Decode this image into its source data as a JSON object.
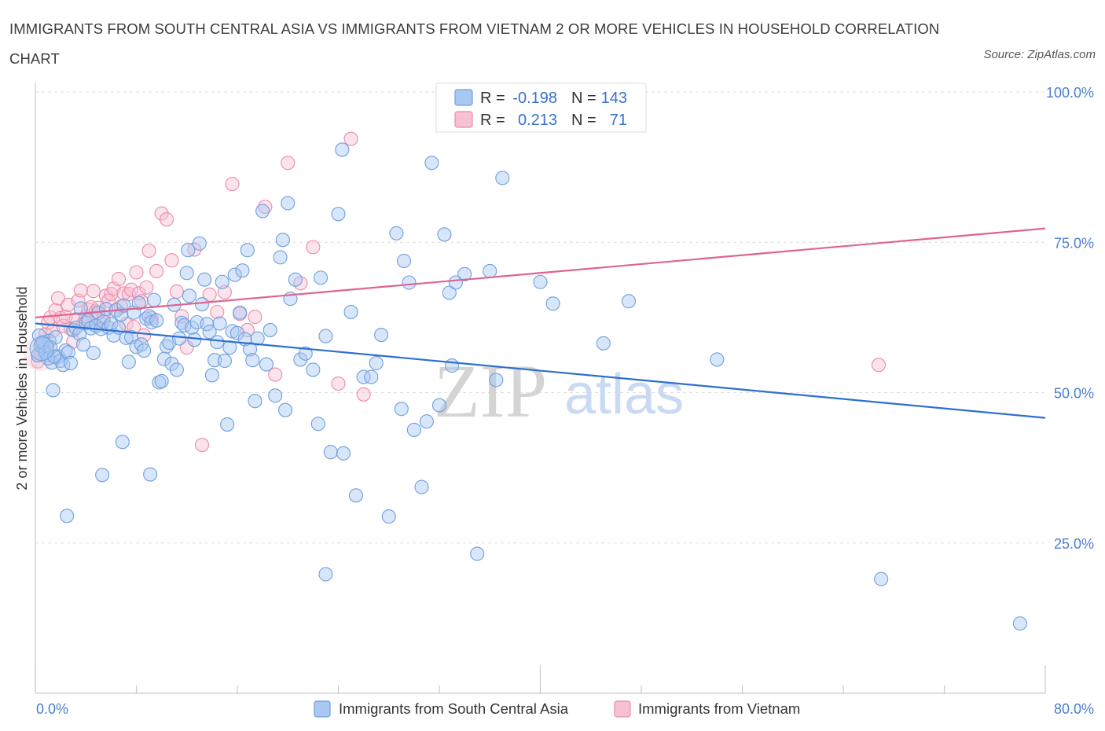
{
  "title": "IMMIGRANTS FROM SOUTH CENTRAL ASIA VS IMMIGRANTS FROM VIETNAM 2 OR MORE VEHICLES IN HOUSEHOLD CORRELATION CHART",
  "source": "Source: ZipAtlas.com",
  "watermark": {
    "zip": "ZIP",
    "atlas": "atlas"
  },
  "colors": {
    "blue_fill": "#a9c8f2",
    "blue_stroke": "#6f9fdf",
    "blue_line": "#2e6fce",
    "pink_fill": "#f6c2d3",
    "pink_stroke": "#e98cab",
    "pink_line": "#e06394",
    "tick_text": "#4a7fd0",
    "grid": "#dddddd"
  },
  "legend": {
    "rows": [
      {
        "r_label": "R =",
        "r_value": "-0.198",
        "n_label": "N =",
        "n_value": "143"
      },
      {
        "r_label": "R =",
        "r_value": "0.213",
        "n_label": "N =",
        "n_value": "71"
      }
    ]
  },
  "chart_data": {
    "type": "scatter",
    "title": "IMMIGRANTS FROM SOUTH CENTRAL ASIA VS IMMIGRANTS FROM VIETNAM 2 OR MORE VEHICLES IN HOUSEHOLD CORRELATION CHART",
    "xlabel": "",
    "ylabel": "2 or more Vehicles in Household",
    "xlim": [
      0,
      80
    ],
    "ylim": [
      0,
      100
    ],
    "x_tick_labels": [
      "0.0%",
      "80.0%"
    ],
    "y_ticks": [
      25,
      50,
      75,
      100
    ],
    "y_tick_labels": [
      "25.0%",
      "50.0%",
      "75.0%",
      "100.0%"
    ],
    "grid": true,
    "legend_position": "top-center",
    "series": [
      {
        "name": "Immigrants from South Central Asia",
        "color": "#a9c8f2",
        "R": -0.198,
        "N": 143,
        "trend": {
          "x": [
            0,
            80
          ],
          "y": [
            61.5,
            45.8
          ]
        },
        "points": [
          [
            0.3,
            59.5
          ],
          [
            0.5,
            58.1
          ],
          [
            0.7,
            57.2
          ],
          [
            0.9,
            56.3
          ],
          [
            1.1,
            58.6
          ],
          [
            1.3,
            55.0
          ],
          [
            1.4,
            50.4
          ],
          [
            1.6,
            59.2
          ],
          [
            1.8,
            56.0
          ],
          [
            2.0,
            55.3
          ],
          [
            2.2,
            54.6
          ],
          [
            2.4,
            57.0
          ],
          [
            2.6,
            56.7
          ],
          [
            2.8,
            54.9
          ],
          [
            3.0,
            60.4
          ],
          [
            3.2,
            60.8
          ],
          [
            3.5,
            59.8
          ],
          [
            3.6,
            64.0
          ],
          [
            3.8,
            58.0
          ],
          [
            4.0,
            61.6
          ],
          [
            4.2,
            62.0
          ],
          [
            4.4,
            60.7
          ],
          [
            4.6,
            56.6
          ],
          [
            4.8,
            61.1
          ],
          [
            5.0,
            63.3
          ],
          [
            5.2,
            60.6
          ],
          [
            5.4,
            61.8
          ],
          [
            5.6,
            63.9
          ],
          [
            5.8,
            60.8
          ],
          [
            6.0,
            61.4
          ],
          [
            6.2,
            59.5
          ],
          [
            6.4,
            63.7
          ],
          [
            6.6,
            60.8
          ],
          [
            6.8,
            63.0
          ],
          [
            7.0,
            64.5
          ],
          [
            7.2,
            59.1
          ],
          [
            7.4,
            55.1
          ],
          [
            7.6,
            59.2
          ],
          [
            7.8,
            63.3
          ],
          [
            8.0,
            57.6
          ],
          [
            8.2,
            64.9
          ],
          [
            8.4,
            58.0
          ],
          [
            8.6,
            57.0
          ],
          [
            8.8,
            62.3
          ],
          [
            9.0,
            62.7
          ],
          [
            9.2,
            61.7
          ],
          [
            9.4,
            65.4
          ],
          [
            9.6,
            62.0
          ],
          [
            9.8,
            51.7
          ],
          [
            10.0,
            51.9
          ],
          [
            10.2,
            55.6
          ],
          [
            10.4,
            57.7
          ],
          [
            10.6,
            58.3
          ],
          [
            10.8,
            54.8
          ],
          [
            11.0,
            64.6
          ],
          [
            11.2,
            53.8
          ],
          [
            11.4,
            59.0
          ],
          [
            11.6,
            61.6
          ],
          [
            11.8,
            61.2
          ],
          [
            12.0,
            69.9
          ],
          [
            12.2,
            66.1
          ],
          [
            12.4,
            60.8
          ],
          [
            12.6,
            58.8
          ],
          [
            12.8,
            61.7
          ],
          [
            13.0,
            74.8
          ],
          [
            13.2,
            64.7
          ],
          [
            13.4,
            68.8
          ],
          [
            13.6,
            61.4
          ],
          [
            13.8,
            60.1
          ],
          [
            14.0,
            52.9
          ],
          [
            14.2,
            55.4
          ],
          [
            14.4,
            58.4
          ],
          [
            14.6,
            61.5
          ],
          [
            14.8,
            68.4
          ],
          [
            15.0,
            55.3
          ],
          [
            15.2,
            44.7
          ],
          [
            15.4,
            57.5
          ],
          [
            15.6,
            60.2
          ],
          [
            15.8,
            69.6
          ],
          [
            16.0,
            59.9
          ],
          [
            16.2,
            63.3
          ],
          [
            16.4,
            70.3
          ],
          [
            16.6,
            58.9
          ],
          [
            16.8,
            73.7
          ],
          [
            17.0,
            57.2
          ],
          [
            17.2,
            55.4
          ],
          [
            17.4,
            48.6
          ],
          [
            17.6,
            59.0
          ],
          [
            18.0,
            80.2
          ],
          [
            18.3,
            54.7
          ],
          [
            18.6,
            60.4
          ],
          [
            19.0,
            49.5
          ],
          [
            19.4,
            72.5
          ],
          [
            19.8,
            47.1
          ],
          [
            20.2,
            65.6
          ],
          [
            20.6,
            68.8
          ],
          [
            21.0,
            55.5
          ],
          [
            21.4,
            56.5
          ],
          [
            22.0,
            53.8
          ],
          [
            22.4,
            44.8
          ],
          [
            22.6,
            69.1
          ],
          [
            23.0,
            59.4
          ],
          [
            23.4,
            40.1
          ],
          [
            24.0,
            79.7
          ],
          [
            24.4,
            39.9
          ],
          [
            25.0,
            63.4
          ],
          [
            25.4,
            32.9
          ],
          [
            26.0,
            52.6
          ],
          [
            26.6,
            52.6
          ],
          [
            27.0,
            54.9
          ],
          [
            27.4,
            59.6
          ],
          [
            28.0,
            29.4
          ],
          [
            28.6,
            76.5
          ],
          [
            29.2,
            71.9
          ],
          [
            29.6,
            68.3
          ],
          [
            30.0,
            43.8
          ],
          [
            30.6,
            34.3
          ],
          [
            31.0,
            45.2
          ],
          [
            31.4,
            88.2
          ],
          [
            32.0,
            47.9
          ],
          [
            32.4,
            76.3
          ],
          [
            32.8,
            66.6
          ],
          [
            33.0,
            54.5
          ],
          [
            34.0,
            69.7
          ],
          [
            35.0,
            23.2
          ],
          [
            36.0,
            70.2
          ],
          [
            37.0,
            85.7
          ],
          [
            40.0,
            68.4
          ],
          [
            41.0,
            64.8
          ],
          [
            45.0,
            58.2
          ],
          [
            47.0,
            65.2
          ],
          [
            54.0,
            55.5
          ],
          [
            67.0,
            19.0
          ],
          [
            78.0,
            11.6
          ],
          [
            0.2,
            56.2
          ],
          [
            0.4,
            57.8
          ],
          [
            0.6,
            58.4
          ],
          [
            0.8,
            56.7
          ],
          [
            1.0,
            55.7
          ],
          [
            1.2,
            57.5
          ],
          [
            1.5,
            56.0
          ],
          [
            2.5,
            29.5
          ],
          [
            5.3,
            36.3
          ],
          [
            6.9,
            41.8
          ],
          [
            9.1,
            36.4
          ],
          [
            12.1,
            73.7
          ],
          [
            20.0,
            81.5
          ],
          [
            23.0,
            19.8
          ],
          [
            24.3,
            90.4
          ],
          [
            29.0,
            47.3
          ],
          [
            33.3,
            68.3
          ],
          [
            36.5,
            52.1
          ],
          [
            19.6,
            75.4
          ]
        ]
      },
      {
        "name": "Immigrants from Vietnam",
        "color": "#f6c2d3",
        "R": 0.213,
        "N": 71,
        "trend": {
          "x": [
            0,
            80
          ],
          "y": [
            62.5,
            77.3
          ]
        },
        "points": [
          [
            0.2,
            55.2
          ],
          [
            0.4,
            56.8
          ],
          [
            0.6,
            58.2
          ],
          [
            0.8,
            59.7
          ],
          [
            1.0,
            61.6
          ],
          [
            1.2,
            62.5
          ],
          [
            1.4,
            60.3
          ],
          [
            1.6,
            63.7
          ],
          [
            1.8,
            65.7
          ],
          [
            2.0,
            62.4
          ],
          [
            2.2,
            61.1
          ],
          [
            2.4,
            62.6
          ],
          [
            2.6,
            64.6
          ],
          [
            2.8,
            60.6
          ],
          [
            3.0,
            58.5
          ],
          [
            3.2,
            62.2
          ],
          [
            3.4,
            65.3
          ],
          [
            3.6,
            67.0
          ],
          [
            3.8,
            61.5
          ],
          [
            4.0,
            62.7
          ],
          [
            4.2,
            63.8
          ],
          [
            4.4,
            64.2
          ],
          [
            4.6,
            66.9
          ],
          [
            4.8,
            63.5
          ],
          [
            5.0,
            64.1
          ],
          [
            5.2,
            61.6
          ],
          [
            5.4,
            62.6
          ],
          [
            5.6,
            66.1
          ],
          [
            5.8,
            65.3
          ],
          [
            6.0,
            66.4
          ],
          [
            6.2,
            67.3
          ],
          [
            6.4,
            63.7
          ],
          [
            6.6,
            68.9
          ],
          [
            6.8,
            64.3
          ],
          [
            7.0,
            66.5
          ],
          [
            7.2,
            61.4
          ],
          [
            7.4,
            66.4
          ],
          [
            7.6,
            67.1
          ],
          [
            7.8,
            60.9
          ],
          [
            8.0,
            70.0
          ],
          [
            8.2,
            66.5
          ],
          [
            8.4,
            65.2
          ],
          [
            8.6,
            59.5
          ],
          [
            8.8,
            67.5
          ],
          [
            9.0,
            73.6
          ],
          [
            9.2,
            62.4
          ],
          [
            9.6,
            70.2
          ],
          [
            10.0,
            79.8
          ],
          [
            10.4,
            78.8
          ],
          [
            10.8,
            72.0
          ],
          [
            11.2,
            66.8
          ],
          [
            11.6,
            62.7
          ],
          [
            12.0,
            57.5
          ],
          [
            12.6,
            73.8
          ],
          [
            13.2,
            41.3
          ],
          [
            13.8,
            66.3
          ],
          [
            14.4,
            63.4
          ],
          [
            15.0,
            66.7
          ],
          [
            15.6,
            84.7
          ],
          [
            16.2,
            63.1
          ],
          [
            16.8,
            60.4
          ],
          [
            17.4,
            62.6
          ],
          [
            18.2,
            80.9
          ],
          [
            19.0,
            53.0
          ],
          [
            20.0,
            88.2
          ],
          [
            21.0,
            68.2
          ],
          [
            22.0,
            74.2
          ],
          [
            24.0,
            51.5
          ],
          [
            25.0,
            92.2
          ],
          [
            26.0,
            49.7
          ],
          [
            66.8,
            54.6
          ]
        ]
      }
    ]
  },
  "bottom_legend": [
    {
      "label": "Immigrants from South Central Asia"
    },
    {
      "label": "Immigrants from Vietnam"
    }
  ]
}
